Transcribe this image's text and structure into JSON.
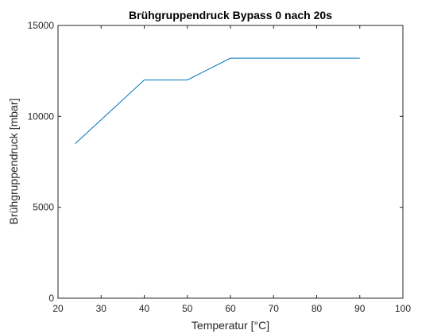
{
  "chart_data": {
    "type": "line",
    "title": "Brühgruppendruck Bypass 0 nach 20s",
    "xlabel": "Temperatur [°C]",
    "ylabel": "Brühgruppendruck [mbar]",
    "xlim": [
      20,
      100
    ],
    "ylim": [
      0,
      15000
    ],
    "xticks": [
      20,
      30,
      40,
      50,
      60,
      70,
      80,
      90,
      100
    ],
    "yticks": [
      0,
      5000,
      10000,
      15000
    ],
    "grid": false,
    "series": [
      {
        "x": [
          24,
          40,
          50,
          60,
          90
        ],
        "y": [
          8500,
          12000,
          12000,
          13200,
          13200
        ],
        "color": "#0072BD"
      }
    ]
  }
}
